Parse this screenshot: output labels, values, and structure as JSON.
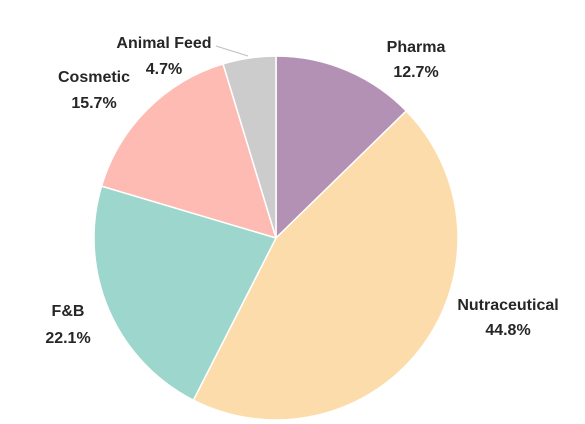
{
  "chart_data": {
    "type": "pie",
    "title": "",
    "slices": [
      {
        "label": "Pharma",
        "value_label": "12.7%",
        "value": 12.7,
        "color": "#b391b5"
      },
      {
        "label": "Nutraceutical",
        "value_label": "44.8%",
        "value": 44.8,
        "color": "#fddcab"
      },
      {
        "label": "F&B",
        "value_label": "22.1%",
        "value": 22.1,
        "color": "#9cd6cc"
      },
      {
        "label": "Cosmetic",
        "value_label": "15.7%",
        "value": 15.7,
        "color": "#fdbbb3"
      },
      {
        "label": "Animal Feed",
        "value_label": "4.7%",
        "value": 4.7,
        "color": "#cccccc"
      }
    ],
    "start_angle": "12 o'clock",
    "direction": "clockwise",
    "slice_border_color": "#ffffff",
    "label_color": "#262626",
    "leader_line_color": "#bfbfbf"
  }
}
